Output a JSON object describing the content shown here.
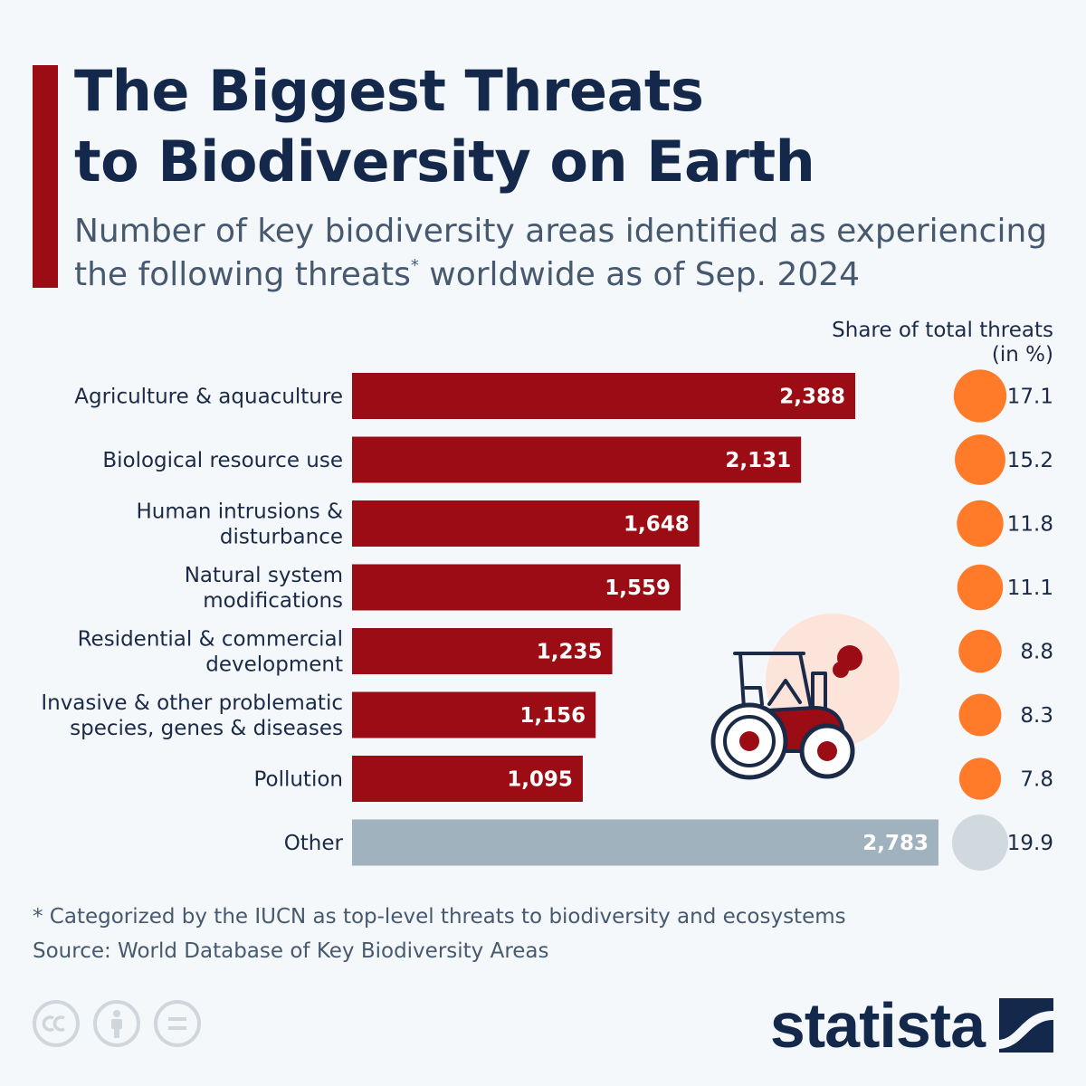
{
  "header": {
    "title_line1": "The Biggest Threats",
    "title_line2": "to Biodiversity on Earth",
    "subtitle_line1": "Number of key biodiversity areas identified as experiencing",
    "subtitle_line2a": "the following threats",
    "subtitle_sup": "*",
    "subtitle_line2b": " worldwide as of Sep. 2024"
  },
  "share_header": {
    "line1": "Share of total threats",
    "line2": "(in %)"
  },
  "chart_data": {
    "type": "bar",
    "orientation": "horizontal",
    "categories": [
      [
        "Agriculture & aquaculture"
      ],
      [
        "Biological resource use"
      ],
      [
        "Human intrusions &",
        "disturbance"
      ],
      [
        "Natural system",
        "modifications"
      ],
      [
        "Residential & commercial",
        "development"
      ],
      [
        "Invasive & other problematic",
        "species, genes & diseases"
      ],
      [
        "Pollution"
      ],
      [
        "Other"
      ]
    ],
    "values": [
      2388,
      2131,
      1648,
      1559,
      1235,
      1156,
      1095,
      2783
    ],
    "value_labels": [
      "2,388",
      "2,131",
      "1,648",
      "1,559",
      "1,235",
      "1,156",
      "1,095",
      "2,783"
    ],
    "share_percent": [
      17.1,
      15.2,
      11.8,
      11.1,
      8.8,
      8.3,
      7.8,
      19.9
    ],
    "share_labels": [
      "17.1",
      "15.2",
      "11.8",
      "11.1",
      "8.8",
      "8.3",
      "7.8",
      "19.9"
    ],
    "colors": {
      "bar": "#9b0c14",
      "bar_other": "#9fb2bd",
      "bubble": "#ff7a29",
      "bubble_other": "#cfd9de"
    }
  },
  "footer": {
    "footnote": "* Categorized by the IUCN as top-level threats to biodiversity and ecosystems",
    "source": "Source: World Database of Key Biodiversity Areas",
    "brand": "statista",
    "license_icons": [
      "cc-icon",
      "attribution-icon",
      "no-derivatives-icon"
    ]
  }
}
